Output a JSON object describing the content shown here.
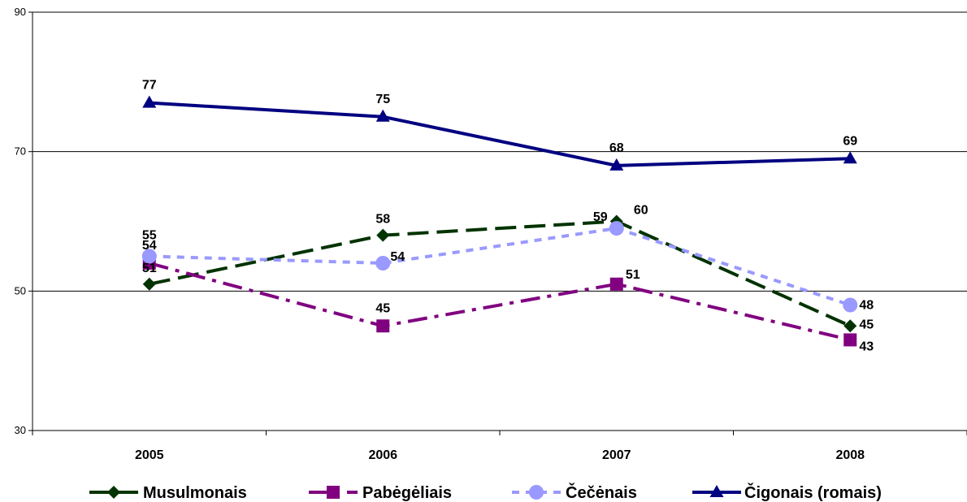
{
  "chart_data": {
    "type": "line",
    "title": "",
    "xlabel": "",
    "ylabel": "",
    "categories": [
      "2005",
      "2006",
      "2007",
      "2008"
    ],
    "ylim": [
      30,
      90
    ],
    "yticks": [
      "30",
      "50",
      "70",
      "90"
    ],
    "grid": true,
    "legend": "bottom",
    "series": [
      {
        "name": "Musulmonais",
        "values": [
          51,
          58,
          60,
          45
        ],
        "labels": [
          "51",
          "58",
          "60",
          "45"
        ],
        "color": "#003300",
        "marker": "diamond",
        "dash": "long-dash"
      },
      {
        "name": "Pabėgėliais",
        "values": [
          54,
          45,
          51,
          43
        ],
        "labels": [
          "54",
          "45",
          "51",
          "43"
        ],
        "color": "#800080",
        "marker": "square",
        "dash": "dash-dot"
      },
      {
        "name": "Čečėnais",
        "values": [
          55,
          54,
          59,
          48
        ],
        "labels": [
          "55",
          "54",
          "59",
          "48"
        ],
        "color": "#9999ff",
        "marker": "circle",
        "dash": "short-dash"
      },
      {
        "name": "Čigonais (romais)",
        "values": [
          77,
          75,
          68,
          69
        ],
        "labels": [
          "77",
          "75",
          "68",
          "69"
        ],
        "color": "#000080",
        "marker": "triangle",
        "dash": "solid"
      }
    ]
  }
}
